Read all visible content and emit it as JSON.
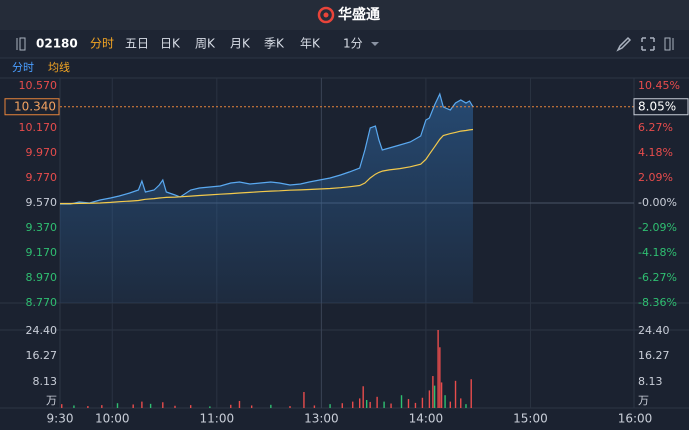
{
  "header": {
    "brand": "华盛通"
  },
  "toolbar": {
    "symbol": "02180",
    "tabs": [
      "分时",
      "五日",
      "日K",
      "周K",
      "月K",
      "季K",
      "年K"
    ],
    "active_tab": 0,
    "interval": "1分"
  },
  "legend": {
    "items": [
      "分时",
      "均线"
    ]
  },
  "chart_data": {
    "type": "line",
    "xlim": [
      0,
      330
    ],
    "xticks": [
      {
        "value": 0,
        "label": "9:30"
      },
      {
        "value": 30,
        "label": "10:00"
      },
      {
        "value": 90,
        "label": "11:00"
      },
      {
        "value": 150,
        "label": "13:00"
      },
      {
        "value": 210,
        "label": "14:00"
      },
      {
        "value": 270,
        "label": "15:00"
      },
      {
        "value": 330,
        "label": "16:00"
      }
    ],
    "ylim": [
      8.77,
      10.57
    ],
    "yticks": [
      {
        "value": 10.57,
        "label": "10.570"
      },
      {
        "value": 10.17,
        "label": "10.170"
      },
      {
        "value": 9.97,
        "label": "9.970"
      },
      {
        "value": 9.77,
        "label": "9.770"
      },
      {
        "value": 9.57,
        "label": "9.570"
      },
      {
        "value": 9.37,
        "label": "9.370"
      },
      {
        "value": 9.17,
        "label": "9.170"
      },
      {
        "value": 8.97,
        "label": "8.970"
      },
      {
        "value": 8.77,
        "label": "8.770"
      }
    ],
    "y2lim": [
      -8.36,
      10.45
    ],
    "y2ticks": [
      {
        "value": 10.45,
        "label": "10.45%"
      },
      {
        "value": 6.27,
        "label": "6.27%"
      },
      {
        "value": 4.18,
        "label": "4.18%"
      },
      {
        "value": 2.09,
        "label": "2.09%"
      },
      {
        "value": 0,
        "label": "-0.00%"
      },
      {
        "value": -2.09,
        "label": "-2.09%"
      },
      {
        "value": -4.18,
        "label": "-4.18%"
      },
      {
        "value": -6.27,
        "label": "-6.27%"
      },
      {
        "value": -8.36,
        "label": "-8.36%"
      }
    ],
    "last_price": {
      "value": 10.34,
      "label": "10.340"
    },
    "last_change": {
      "value": 8.05,
      "label": "8.05%"
    },
    "x": [
      0,
      6,
      11,
      17,
      23,
      29,
      34,
      40,
      45,
      47,
      49,
      54,
      57,
      59,
      61,
      66,
      69,
      75,
      80,
      86,
      92,
      98,
      103,
      109,
      115,
      121,
      126,
      132,
      138,
      143,
      149,
      155,
      161,
      166,
      172,
      175,
      178,
      181,
      183,
      185,
      189,
      195,
      201,
      207,
      210,
      212,
      215,
      218,
      220,
      224,
      227,
      230,
      233,
      235,
      237
    ],
    "series": [
      {
        "color": "#5aa9f0",
        "values": [
          9.562,
          9.562,
          9.578,
          9.57,
          9.594,
          9.61,
          9.626,
          9.65,
          9.674,
          9.746,
          9.658,
          9.674,
          9.714,
          9.754,
          9.658,
          9.634,
          9.618,
          9.674,
          9.69,
          9.698,
          9.706,
          9.73,
          9.738,
          9.722,
          9.73,
          9.738,
          9.73,
          9.714,
          9.722,
          9.738,
          9.754,
          9.77,
          9.794,
          9.818,
          9.85,
          9.994,
          10.17,
          10.186,
          10.074,
          9.994,
          10.01,
          10.034,
          10.058,
          10.106,
          10.234,
          10.25,
          10.354,
          10.442,
          10.338,
          10.314,
          10.37,
          10.394,
          10.37,
          10.386,
          10.34
        ]
      },
      {
        "color": "#f2c94c",
        "values": [
          9.565,
          9.565,
          9.567,
          9.568,
          9.57,
          9.575,
          9.58,
          9.585,
          9.59,
          9.595,
          9.6,
          9.605,
          9.61,
          9.612,
          9.615,
          9.617,
          9.62,
          9.625,
          9.63,
          9.635,
          9.64,
          9.645,
          9.65,
          9.655,
          9.66,
          9.665,
          9.668,
          9.672,
          9.675,
          9.678,
          9.682,
          9.686,
          9.692,
          9.7,
          9.71,
          9.73,
          9.77,
          9.8,
          9.815,
          9.825,
          9.835,
          9.845,
          9.86,
          9.88,
          9.92,
          9.96,
          10.02,
          10.08,
          10.11,
          10.125,
          10.135,
          10.145,
          10.15,
          10.155,
          10.158
        ]
      }
    ],
    "volume": {
      "ylim": [
        0,
        24.4
      ],
      "yticks": [
        {
          "value": 24.4,
          "label": "24.40"
        },
        {
          "value": 16.27,
          "label": "16.27"
        },
        {
          "value": 8.13,
          "label": "8.13"
        }
      ],
      "unit": "万",
      "x": [
        1,
        8,
        16,
        24,
        33,
        42,
        47,
        52,
        59,
        66,
        75,
        86,
        98,
        103,
        110,
        121,
        132,
        140,
        146,
        155,
        162,
        168,
        172,
        174,
        176,
        178,
        182,
        186,
        190,
        196,
        200,
        204,
        208,
        212,
        214,
        215,
        217,
        218,
        219,
        221,
        224,
        227,
        230,
        233,
        236
      ],
      "values": [
        1.2,
        0.8,
        0.6,
        0.9,
        1.5,
        1.1,
        2.0,
        1.3,
        1.8,
        0.7,
        0.9,
        0.5,
        1.0,
        2.2,
        0.8,
        1.0,
        0.6,
        5.0,
        0.8,
        1.2,
        1.5,
        2.0,
        3.0,
        6.8,
        2.5,
        1.9,
        3.5,
        2.0,
        1.4,
        4.0,
        2.8,
        1.6,
        3.2,
        5.5,
        10.0,
        7.0,
        24.4,
        19.0,
        8.0,
        4.0,
        2.0,
        8.5,
        3.0,
        1.2,
        9.0
      ],
      "colors": [
        "#e84c4c",
        "#2fbf71",
        "#e84c4c",
        "#e84c4c",
        "#2fbf71",
        "#e84c4c",
        "#e84c4c",
        "#2fbf71",
        "#e84c4c",
        "#e84c4c",
        "#e84c4c",
        "#2fbf71",
        "#e84c4c",
        "#e84c4c",
        "#e84c4c",
        "#2fbf71",
        "#e84c4c",
        "#e84c4c",
        "#e84c4c",
        "#2fbf71",
        "#e84c4c",
        "#e84c4c",
        "#e84c4c",
        "#e84c4c",
        "#2fbf71",
        "#e84c4c",
        "#e84c4c",
        "#2fbf71",
        "#e84c4c",
        "#2fbf71",
        "#e84c4c",
        "#e84c4c",
        "#e84c4c",
        "#e84c4c",
        "#e84c4c",
        "#2fbf71",
        "#e84c4c",
        "#e84c4c",
        "#e84c4c",
        "#2fbf71",
        "#e84c4c",
        "#e84c4c",
        "#e84c4c",
        "#2fbf71",
        "#e84c4c"
      ]
    }
  }
}
